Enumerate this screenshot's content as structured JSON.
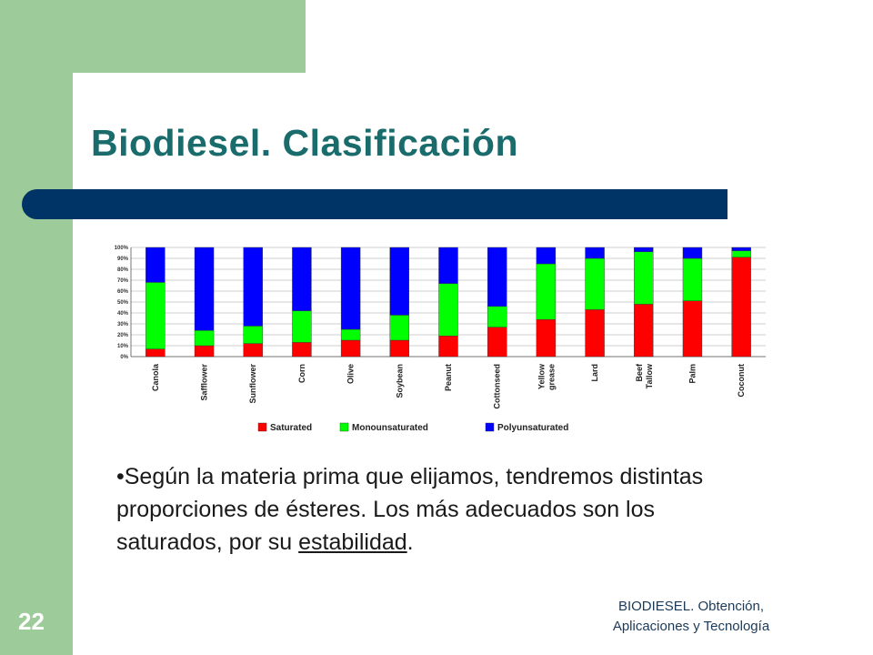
{
  "slide": {
    "title": "Biodiesel. Clasificación",
    "bullet": {
      "lead": "•Según la materia prima que elijamos, tendremos distintas proporciones de ésteres. Los más adecuados son los saturados, por su ",
      "emphasis": "estabilidad",
      "tail": "."
    },
    "page_number": "22",
    "footer_line1": "BIODIESEL. Obtención,",
    "footer_line2": "Aplicaciones y Tecnología"
  },
  "chart_data": {
    "type": "bar",
    "stacked": true,
    "categories": [
      "Canola",
      "Safflower",
      "Sunflower",
      "Corn",
      "Olive",
      "Soybean",
      "Peanut",
      "Cottonseed",
      "Yellow grease",
      "Lard",
      "Beef Tallow",
      "Palm",
      "Coconut"
    ],
    "category_lines": [
      [
        "Canola"
      ],
      [
        "Safflower"
      ],
      [
        "Sunflower"
      ],
      [
        "Corn"
      ],
      [
        "Olive"
      ],
      [
        "Soybean"
      ],
      [
        "Peanut"
      ],
      [
        "Cottonseed"
      ],
      [
        "Yellow",
        "grease"
      ],
      [
        "Lard"
      ],
      [
        "Beef",
        "Tallow"
      ],
      [
        "Palm"
      ],
      [
        "Coconut"
      ]
    ],
    "series": [
      {
        "name": "Saturated",
        "color": "#ff0000",
        "values": [
          7,
          10,
          12,
          13,
          15,
          15,
          19,
          27,
          34,
          43,
          48,
          51,
          91
        ]
      },
      {
        "name": "Monounsaturated",
        "color": "#00ff00",
        "values": [
          61,
          14,
          16,
          29,
          10,
          23,
          48,
          19,
          51,
          47,
          48,
          39,
          6
        ]
      },
      {
        "name": "Polyunsaturated",
        "color": "#0000ff",
        "values": [
          32,
          76,
          72,
          58,
          75,
          62,
          33,
          54,
          15,
          10,
          4,
          10,
          3
        ]
      }
    ],
    "yticks": [
      "0%",
      "10%",
      "20%",
      "30%",
      "40%",
      "50%",
      "60%",
      "70%",
      "80%",
      "90%",
      "100%"
    ],
    "ylim": [
      0,
      100
    ],
    "legend_position": "bottom",
    "grid": true
  }
}
